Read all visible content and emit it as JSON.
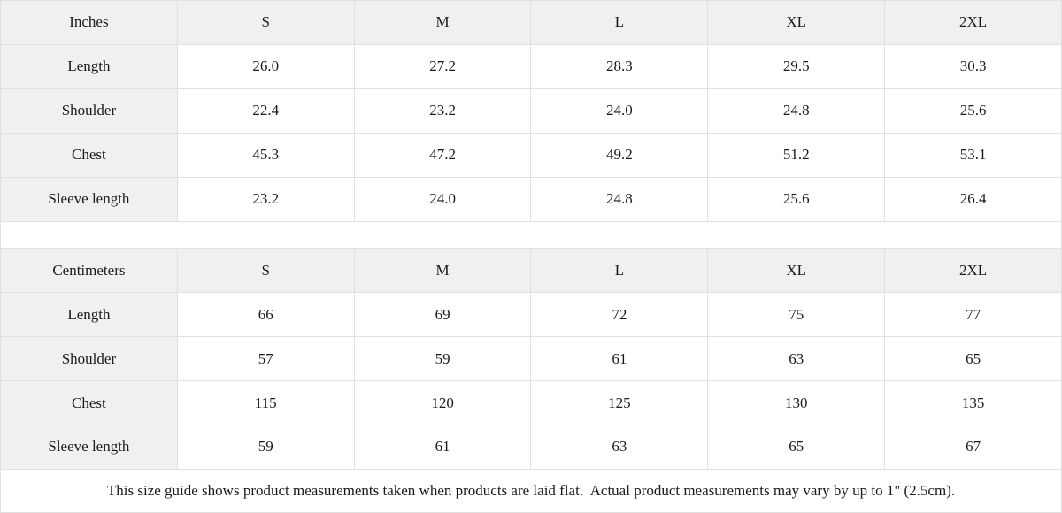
{
  "tables": [
    {
      "unit_label": "Inches",
      "sizes": [
        "S",
        "M",
        "L",
        "XL",
        "2XL"
      ],
      "rows": [
        {
          "label": "Length",
          "values": [
            "26.0",
            "27.2",
            "28.3",
            "29.5",
            "30.3"
          ]
        },
        {
          "label": "Shoulder",
          "values": [
            "22.4",
            "23.2",
            "24.0",
            "24.8",
            "25.6"
          ]
        },
        {
          "label": "Chest",
          "values": [
            "45.3",
            "47.2",
            "49.2",
            "51.2",
            "53.1"
          ]
        },
        {
          "label": "Sleeve length",
          "values": [
            "23.2",
            "24.0",
            "24.8",
            "25.6",
            "26.4"
          ]
        }
      ]
    },
    {
      "unit_label": "Centimeters",
      "sizes": [
        "S",
        "M",
        "L",
        "XL",
        "2XL"
      ],
      "rows": [
        {
          "label": "Length",
          "values": [
            "66",
            "69",
            "72",
            "75",
            "77"
          ]
        },
        {
          "label": "Shoulder",
          "values": [
            "57",
            "59",
            "61",
            "63",
            "65"
          ]
        },
        {
          "label": "Chest",
          "values": [
            "115",
            "120",
            "125",
            "130",
            "135"
          ]
        },
        {
          "label": "Sleeve length",
          "values": [
            "59",
            "61",
            "63",
            "65",
            "67"
          ]
        }
      ]
    }
  ],
  "footer_note": "This size guide shows product measurements taken when products are laid flat.  Actual product measurements may vary by up to 1\" (2.5cm).",
  "colors": {
    "header_bg": "#f0f0f0",
    "row_bg": "#ffffff",
    "border": "#e0e0e0",
    "text": "#1a1a1a"
  }
}
